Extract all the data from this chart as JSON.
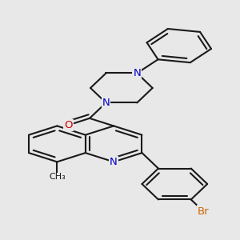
{
  "background_color": "#e8e8e8",
  "bond_color": "#1a1a1a",
  "bond_width": 1.5,
  "atom_colors": {
    "N": "#0000cc",
    "O": "#cc0000",
    "Br": "#cc6600",
    "C": "#1a1a1a"
  },
  "font_size_atom": 9.5,
  "font_size_me": 8.0
}
